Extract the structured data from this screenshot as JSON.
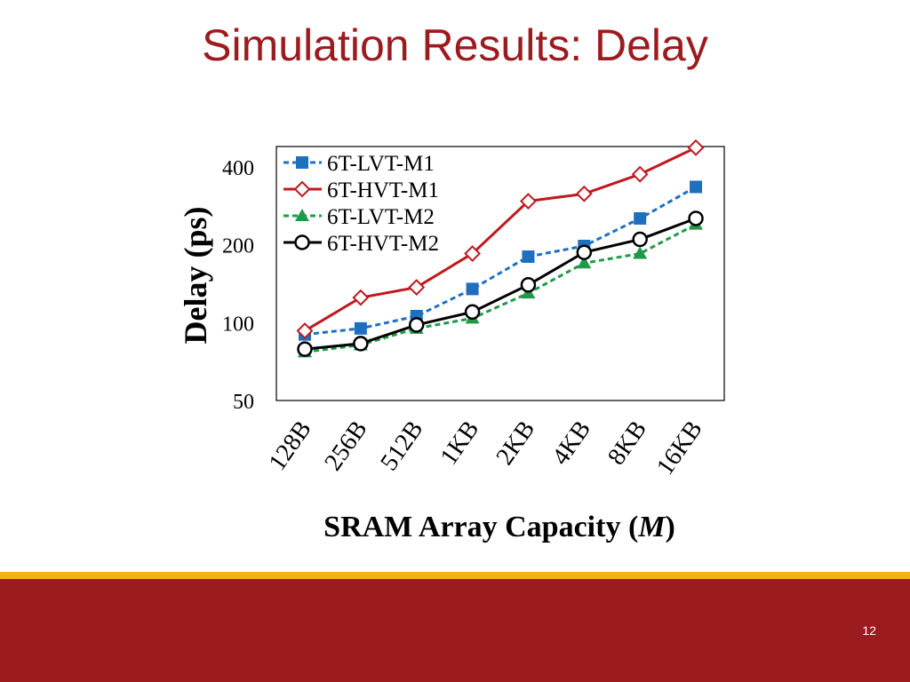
{
  "slide": {
    "title": "Simulation Results: Delay",
    "page_number": "12",
    "colors": {
      "title": "#9b1b1f",
      "footer_band": "#9b1b1f",
      "footer_stripe": "#f2b50f"
    }
  },
  "chart_data": {
    "type": "line",
    "title": "",
    "xlabel": "SRAM Array Capacity (M)",
    "xlabel_main": "SRAM Array Capacity (",
    "xlabel_var": "M",
    "xlabel_close": ")",
    "ylabel": "Delay (ps)",
    "y_scale": "log",
    "ylim": [
      50,
      480
    ],
    "yticks": [
      50,
      100,
      200,
      400
    ],
    "ytick_labels": [
      "50",
      "100",
      "200",
      "400"
    ],
    "categories": [
      "128B",
      "256B",
      "512B",
      "1KB",
      "2KB",
      "4KB",
      "8KB",
      "16KB"
    ],
    "legend_position": "top-left",
    "grid": false,
    "series": [
      {
        "name": "6T-LVT-M1",
        "values": [
          90,
          95,
          106,
          135,
          180,
          198,
          253,
          335
        ],
        "color": "#1f6fbf",
        "dash": "6,4",
        "marker": "square"
      },
      {
        "name": "6T-HVT-M1",
        "values": [
          93,
          125,
          137,
          185,
          295,
          315,
          375,
          475
        ],
        "color": "#c0181e",
        "dash": "",
        "marker": "diamond"
      },
      {
        "name": "6T-LVT-M2",
        "values": [
          77,
          82,
          95,
          104,
          130,
          170,
          185,
          240
        ],
        "color": "#1f9a4a",
        "dash": "6,4",
        "marker": "triangle"
      },
      {
        "name": "6T-HVT-M2",
        "values": [
          79,
          83,
          98,
          110,
          140,
          187,
          210,
          253
        ],
        "color": "#000000",
        "dash": "",
        "marker": "circle"
      }
    ]
  }
}
